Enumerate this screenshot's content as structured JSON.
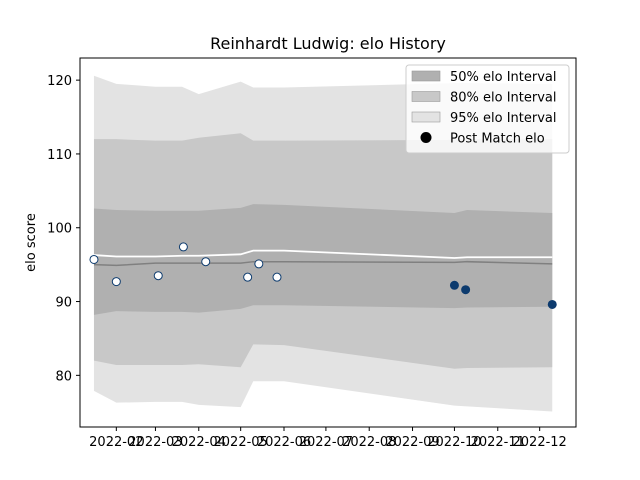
{
  "chart_data": {
    "type": "line",
    "title": "Reinhardt Ludwig: elo History",
    "xlabel": "",
    "ylabel": "elo score",
    "ylim": [
      73,
      123
    ],
    "xlim": [
      "2022-01-06",
      "2022-12-27"
    ],
    "yticks": [
      80,
      90,
      100,
      110,
      120
    ],
    "xticks": [
      "2022-02-01",
      "2022-03-01",
      "2022-04-01",
      "2022-05-01",
      "2022-06-01",
      "2022-07-01",
      "2022-08-01",
      "2022-09-01",
      "2022-10-01",
      "2022-11-01",
      "2022-12-01"
    ],
    "xtick_labels": [
      "2022-02",
      "2022-03",
      "2022-04",
      "2022-05",
      "2022-06",
      "2022-07",
      "2022-08",
      "2022-09",
      "2022-10",
      "2022-11",
      "2022-12"
    ],
    "grid": false,
    "legend_position": "top-right",
    "legend": [
      {
        "label": "50% elo Interval",
        "kind": "band",
        "color": "#b0b0b0"
      },
      {
        "label": "80% elo Interval",
        "kind": "band",
        "color": "#c8c8c8"
      },
      {
        "label": "95% elo Interval",
        "kind": "band",
        "color": "#e3e3e3"
      },
      {
        "label": "Post Match elo",
        "kind": "marker",
        "color": "#000000"
      }
    ],
    "colors": {
      "band50": "#b0b0b0",
      "band80": "#c8c8c8",
      "band95": "#e3e3e3",
      "mean_line": "#808080",
      "upper_line": "#ffffff",
      "marker_fill": "#ffffff",
      "marker_fill_late": "#0d3b6e",
      "marker_edge": "#0d3b6e"
    },
    "bands": {
      "x": [
        "2022-01-16",
        "2022-02-01",
        "2022-03-01",
        "2022-03-20",
        "2022-04-01",
        "2022-05-01",
        "2022-05-10",
        "2022-06-01",
        "2022-10-01",
        "2022-10-10",
        "2022-12-10"
      ],
      "p95_upper": [
        120.6,
        119.5,
        119.1,
        119.1,
        118.1,
        119.8,
        119.0,
        119.0,
        119.6,
        119.6,
        119.5
      ],
      "p80_upper": [
        112.0,
        112.0,
        111.8,
        111.8,
        112.2,
        112.8,
        111.8,
        111.8,
        111.9,
        112.0,
        112.0
      ],
      "p50_upper": [
        102.6,
        102.4,
        102.3,
        102.3,
        102.3,
        102.7,
        103.2,
        103.1,
        102.0,
        102.4,
        102.0
      ],
      "mean": [
        95.0,
        94.9,
        95.2,
        95.2,
        95.2,
        95.2,
        95.4,
        95.4,
        95.3,
        95.4,
        95.1
      ],
      "upper_line": [
        96.3,
        96.1,
        96.1,
        96.2,
        96.2,
        96.4,
        96.9,
        96.9,
        95.9,
        96.0,
        96.0
      ],
      "p50_lower": [
        88.2,
        88.7,
        88.6,
        88.6,
        88.5,
        89.0,
        89.5,
        89.5,
        89.1,
        89.2,
        89.3
      ],
      "p80_lower": [
        82.0,
        81.4,
        81.4,
        81.4,
        81.5,
        81.1,
        84.2,
        84.1,
        80.9,
        81.0,
        81.1
      ],
      "p95_lower": [
        77.9,
        76.3,
        76.4,
        76.4,
        76.0,
        75.7,
        79.2,
        79.2,
        75.9,
        75.8,
        75.1
      ]
    },
    "series": [
      {
        "name": "Post Match elo",
        "x": [
          "2022-01-16",
          "2022-02-01",
          "2022-03-03",
          "2022-03-21",
          "2022-04-06",
          "2022-05-06",
          "2022-05-14",
          "2022-05-27",
          "2022-10-01",
          "2022-10-09",
          "2022-12-10"
        ],
        "y": [
          95.7,
          92.7,
          93.5,
          97.4,
          95.4,
          93.3,
          95.1,
          93.3,
          92.2,
          91.6,
          89.6
        ]
      }
    ]
  }
}
